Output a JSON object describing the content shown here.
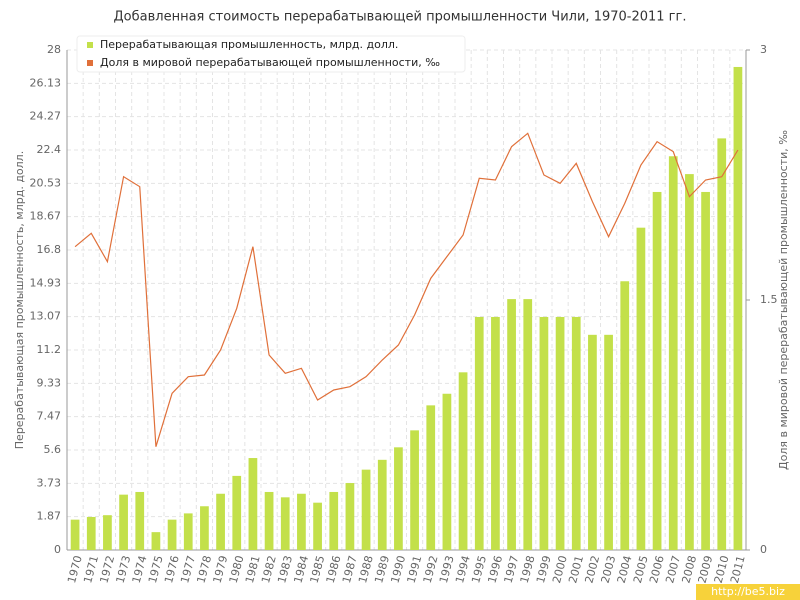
{
  "chart_data": {
    "type": "bar-line",
    "title": "Добавленная стоимость перерабатывающей промышленности Чили, 1970-2011 гг.",
    "y_label": "Перерабатывающая промышленность, млрд. долл.",
    "y2_label": "Доля в мировой перерабатывающей промышленности, ‰",
    "watermark": "http://be5.biz",
    "categories": [
      "1970",
      "1971",
      "1972",
      "1973",
      "1974",
      "1975",
      "1976",
      "1977",
      "1978",
      "1979",
      "1980",
      "1981",
      "1982",
      "1983",
      "1984",
      "1985",
      "1986",
      "1987",
      "1988",
      "1989",
      "1990",
      "1991",
      "1992",
      "1993",
      "1994",
      "1995",
      "1996",
      "1997",
      "1998",
      "1999",
      "2000",
      "2001",
      "2002",
      "2003",
      "2004",
      "2005",
      "2006",
      "2007",
      "2008",
      "2009",
      "2010",
      "2011"
    ],
    "series": [
      {
        "name": "Перерабатывающая промышленность, млрд. долл.",
        "color": "#c3e04a",
        "type": "bar",
        "values": [
          1.7,
          1.85,
          1.95,
          3.1,
          3.25,
          1.0,
          1.7,
          2.05,
          2.45,
          3.15,
          4.15,
          5.15,
          3.25,
          2.95,
          3.15,
          2.65,
          3.25,
          3.75,
          4.5,
          5.05,
          5.75,
          6.7,
          8.1,
          8.75,
          9.95,
          13.05,
          13.05,
          14.05,
          14.05,
          13.05,
          13.05,
          13.05,
          12.05,
          12.05,
          15.05,
          18.05,
          20.05,
          22.05,
          21.05,
          20.05,
          23.05,
          27.05
        ]
      },
      {
        "name": "Доля в мировой перерабатывающей промышленности, ‰",
        "color": "#e0703a",
        "type": "line",
        "axis": "y2",
        "values": [
          1.82,
          1.9,
          1.73,
          2.24,
          2.18,
          0.62,
          0.94,
          1.04,
          1.05,
          1.2,
          1.45,
          1.82,
          1.17,
          1.06,
          1.09,
          0.9,
          0.96,
          0.98,
          1.04,
          1.14,
          1.23,
          1.41,
          1.63,
          1.76,
          1.89,
          2.23,
          2.22,
          2.42,
          2.5,
          2.25,
          2.2,
          2.32,
          2.09,
          1.88,
          2.08,
          2.31,
          2.45,
          2.39,
          2.12,
          2.22,
          2.24,
          2.4
        ]
      }
    ],
    "ylim": [
      0,
      28
    ],
    "yticks": [
      0,
      1.87,
      3.73,
      5.6,
      7.47,
      9.33,
      11.2,
      13.07,
      14.93,
      16.8,
      18.67,
      20.53,
      22.4,
      24.27,
      26.13,
      28
    ],
    "y2lim": [
      0,
      3
    ],
    "y2ticks": [
      0,
      1.5,
      3
    ],
    "grid": true,
    "legend": "top-left"
  }
}
